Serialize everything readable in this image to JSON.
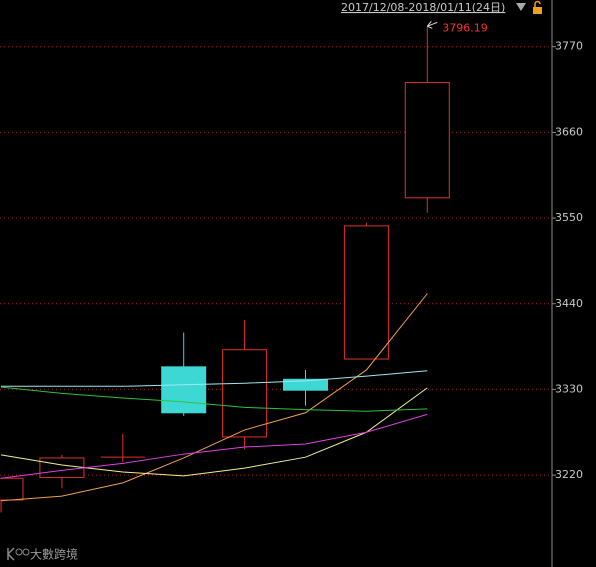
{
  "chart_data": {
    "type": "candlestick",
    "title": "2017/12/08-2018/01/11(24日)",
    "watermark": "大數跨境",
    "categories": [
      null,
      null,
      null,
      null,
      null,
      null,
      null,
      null
    ],
    "candles": {
      "open": [
        3188,
        3217,
        3243,
        3359,
        3269,
        3343,
        3369,
        3576
      ],
      "high": [
        3216,
        3246,
        3273,
        3403,
        3419,
        3355,
        3544,
        3796.19
      ],
      "low": [
        3172,
        3203,
        3237,
        3296,
        3253,
        3309,
        3369,
        3557
      ],
      "close": [
        3216,
        3242,
        3243,
        3300,
        3381,
        3329,
        3540,
        3724
      ],
      "up_color": "#e0302a",
      "down_color": "#3dd8d4"
    },
    "lines": [
      {
        "color": "#f0a050",
        "values": [
          3187,
          3193,
          3210,
          3242,
          3278,
          3300,
          3355,
          3453
        ]
      },
      {
        "color": "#f0f090",
        "values": [
          3246,
          3233,
          3224,
          3219,
          3229,
          3243,
          3275,
          3332
        ]
      },
      {
        "color": "#e040e0",
        "values": [
          3216,
          3226,
          3235,
          3247,
          3256,
          3260,
          3275,
          3298
        ]
      },
      {
        "color": "#9ee8f0",
        "values": [
          3334,
          3334,
          3334,
          3336,
          3338,
          3341,
          3347,
          3354
        ]
      },
      {
        "color": "#30c040",
        "values": [
          3333,
          3325,
          3319,
          3314,
          3307,
          3304,
          3302,
          3305
        ]
      }
    ],
    "ylim": [
      3102,
      3830
    ],
    "yticks": [
      3220,
      3330,
      3440,
      3550,
      3660,
      3770
    ],
    "grid": true
  }
}
